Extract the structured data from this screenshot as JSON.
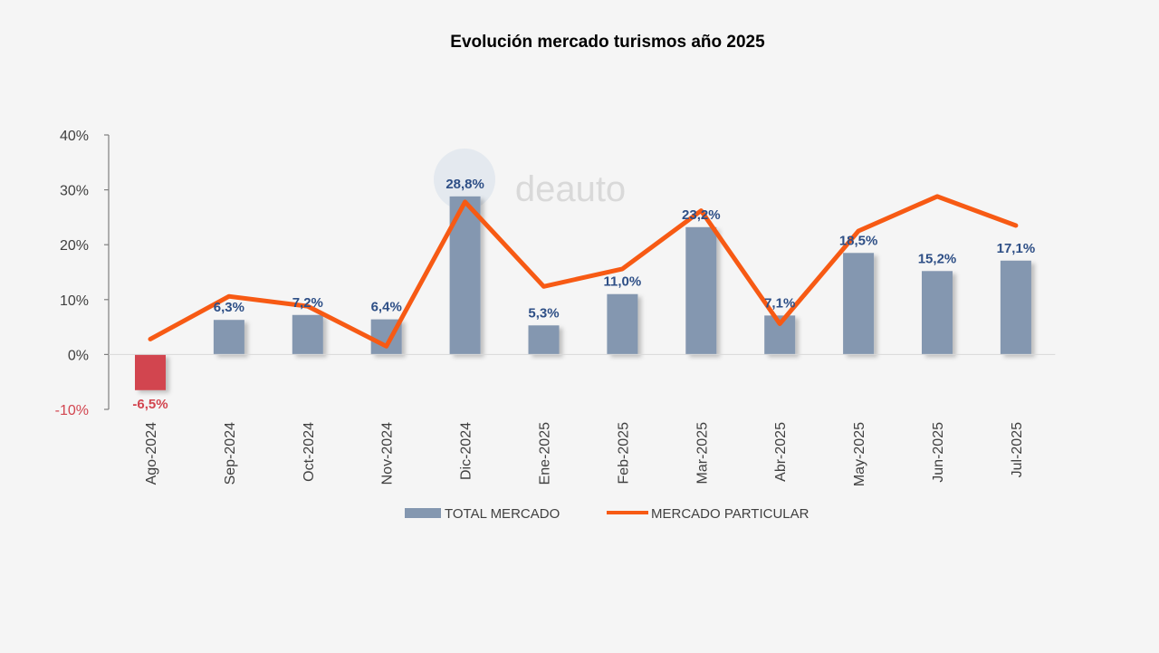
{
  "chart_data": {
    "type": "bar",
    "title": "Evolución mercado turismos año 2025",
    "categories": [
      "Ago-2024",
      "Sep-2024",
      "Oct-2024",
      "Nov-2024",
      "Dic-2024",
      "Ene-2025",
      "Feb-2025",
      "Mar-2025",
      "Abr-2025",
      "May-2025",
      "Jun-2025",
      "Jul-2025"
    ],
    "series": [
      {
        "name": "TOTAL MERCADO",
        "type": "bar",
        "values": [
          -6.5,
          6.3,
          7.2,
          6.4,
          28.8,
          5.3,
          11.0,
          23.2,
          7.1,
          18.5,
          15.2,
          17.1
        ],
        "labels": [
          "-6,5%",
          "6,3%",
          "7,2%",
          "6,4%",
          "28,8%",
          "5,3%",
          "11,0%",
          "23,2%",
          "7,1%",
          "18,5%",
          "15,2%",
          "17,1%"
        ],
        "color": "#8497b0",
        "negative_color": "#d2454f"
      },
      {
        "name": "MERCADO PARTICULAR",
        "type": "line",
        "values": [
          2.8,
          10.6,
          8.8,
          1.5,
          27.8,
          12.4,
          15.6,
          26.2,
          5.6,
          22.5,
          28.8,
          23.5
        ],
        "color": "#f75a14"
      }
    ],
    "ylim": [
      -10,
      40
    ],
    "yticks": [
      {
        "value": 40,
        "label": "40%"
      },
      {
        "value": 30,
        "label": "30%"
      },
      {
        "value": 20,
        "label": "20%"
      },
      {
        "value": 10,
        "label": "10%"
      },
      {
        "value": 0,
        "label": "0%"
      },
      {
        "value": -10,
        "label": "-10%"
      }
    ],
    "grid": false,
    "legend_position": "bottom"
  },
  "watermark": {
    "text": "deauto"
  },
  "colors": {
    "title": "#1f4e8c",
    "label_text": "#2e4f86",
    "negative_text": "#d2454f",
    "axis_text": "#404040",
    "legend_text": "#404040",
    "axis_line": "#7f7f7f",
    "background": "#f5f5f5"
  }
}
